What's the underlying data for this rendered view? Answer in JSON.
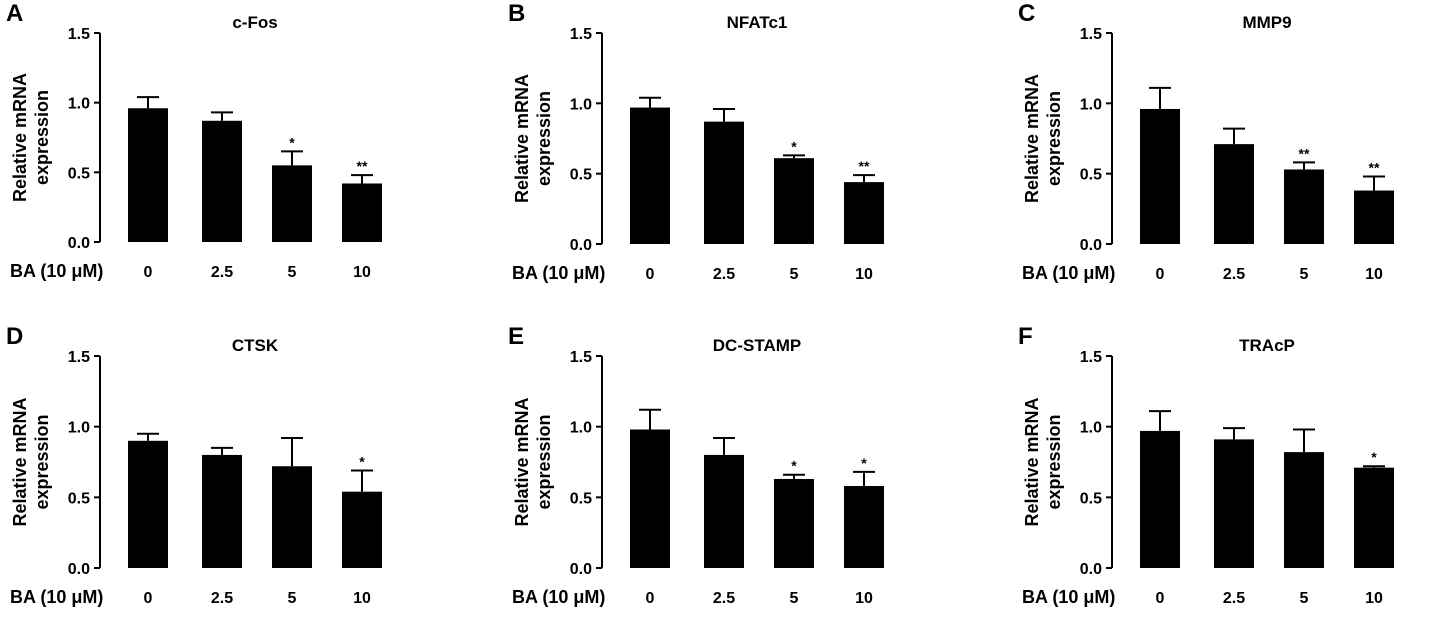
{
  "chart_data": [
    {
      "panel": "A",
      "type": "bar",
      "title": "c-Fos",
      "ylabel": [
        "Relative mRNA",
        "expression"
      ],
      "xlabel": "BA (10 μM)",
      "categories": [
        "0",
        "2.5",
        "5",
        "10"
      ],
      "values": [
        0.96,
        0.87,
        0.55,
        0.42
      ],
      "errors": [
        0.08,
        0.06,
        0.1,
        0.06
      ],
      "significance": [
        "",
        "",
        "*",
        "**"
      ],
      "ylim": [
        0,
        1.5
      ],
      "yticks": [
        "0.0",
        "0.5",
        "1.0",
        "1.5"
      ],
      "color": "#000000"
    },
    {
      "panel": "B",
      "type": "bar",
      "title": "NFATc1",
      "ylabel": [
        "Relative mRNA",
        "expression"
      ],
      "xlabel": "BA (10 μM)",
      "categories": [
        "0",
        "2.5",
        "5",
        "10"
      ],
      "values": [
        0.97,
        0.87,
        0.61,
        0.44
      ],
      "errors": [
        0.07,
        0.09,
        0.02,
        0.05
      ],
      "significance": [
        "",
        "",
        "*",
        "**"
      ],
      "ylim": [
        0,
        1.5
      ],
      "yticks": [
        "0.0",
        "0.5",
        "1.0",
        "1.5"
      ],
      "color": "#000000"
    },
    {
      "panel": "C",
      "type": "bar",
      "title": "MMP9",
      "ylabel": [
        "Relative mRNA",
        "expression"
      ],
      "xlabel": "BA (10 μM)",
      "categories": [
        "0",
        "2.5",
        "5",
        "10"
      ],
      "values": [
        0.96,
        0.71,
        0.53,
        0.38
      ],
      "errors": [
        0.15,
        0.11,
        0.05,
        0.1
      ],
      "significance": [
        "",
        "",
        "**",
        "**"
      ],
      "ylim": [
        0,
        1.5
      ],
      "yticks": [
        "0.0",
        "0.5",
        "1.0",
        "1.5"
      ],
      "color": "#000000"
    },
    {
      "panel": "D",
      "type": "bar",
      "title": "CTSK",
      "ylabel": [
        "Relative mRNA",
        "expression"
      ],
      "xlabel": "BA (10 μM)",
      "categories": [
        "0",
        "2.5",
        "5",
        "10"
      ],
      "values": [
        0.9,
        0.8,
        0.72,
        0.54
      ],
      "errors": [
        0.05,
        0.05,
        0.2,
        0.15
      ],
      "significance": [
        "",
        "",
        "",
        "*"
      ],
      "ylim": [
        0,
        1.5
      ],
      "yticks": [
        "0.0",
        "0.5",
        "1.0",
        "1.5"
      ],
      "color": "#000000"
    },
    {
      "panel": "E",
      "type": "bar",
      "title": "DC-STAMP",
      "ylabel": [
        "Relative mRNA",
        "expression"
      ],
      "xlabel": "BA (10 μM)",
      "categories": [
        "0",
        "2.5",
        "5",
        "10"
      ],
      "values": [
        0.98,
        0.8,
        0.63,
        0.58
      ],
      "errors": [
        0.14,
        0.12,
        0.03,
        0.1
      ],
      "significance": [
        "",
        "",
        "*",
        "*"
      ],
      "ylim": [
        0,
        1.5
      ],
      "yticks": [
        "0.0",
        "0.5",
        "1.0",
        "1.5"
      ],
      "color": "#000000"
    },
    {
      "panel": "F",
      "type": "bar",
      "title": "TRAcP",
      "ylabel": [
        "Relative mRNA",
        "expression"
      ],
      "xlabel": "BA (10 μM)",
      "categories": [
        "0",
        "2.5",
        "5",
        "10"
      ],
      "values": [
        0.97,
        0.91,
        0.82,
        0.71
      ],
      "errors": [
        0.14,
        0.08,
        0.16,
        0.01
      ],
      "significance": [
        "",
        "",
        "",
        "*"
      ],
      "ylim": [
        0,
        1.5
      ],
      "yticks": [
        "0.0",
        "0.5",
        "1.0",
        "1.5"
      ],
      "color": "#000000"
    }
  ]
}
